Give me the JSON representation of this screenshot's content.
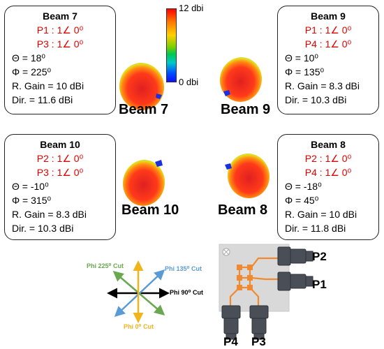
{
  "colorbar": {
    "max_label": "12 dbi",
    "min_label": "0 dbi"
  },
  "beams": [
    {
      "id": "beam7",
      "title": "Beam 7",
      "port_a": "P1 : 1∠ 0⁰",
      "port_b": "P3 : 1∠ 0⁰",
      "theta": "Θ = 18⁰",
      "phi": "Φ = 225⁰",
      "gain": "R. Gain = 10 dBi",
      "dir": "Dir. = 11.6 dBi",
      "label": "Beam 7"
    },
    {
      "id": "beam9",
      "title": "Beam 9",
      "port_a": "P1 : 1∠ 0⁰",
      "port_b": "P4 : 1∠ 0⁰",
      "theta": "Θ = 10⁰",
      "phi": "Φ = 135⁰",
      "gain": "R. Gain = 8.3 dBi",
      "dir": "Dir. = 10.3 dBi",
      "label": "Beam 9"
    },
    {
      "id": "beam10",
      "title": "Beam 10",
      "port_a": "P2 : 1∠ 0⁰",
      "port_b": "P3 : 1∠ 0⁰",
      "theta": "Θ = -10⁰",
      "phi": "Φ = 315⁰",
      "gain": "R. Gain = 8.3 dBi",
      "dir": "Dir. = 10.3 dBi",
      "label": "Beam 10"
    },
    {
      "id": "beam8",
      "title": "Beam 8",
      "port_a": "P2 : 1∠ 0⁰",
      "port_b": "P4 : 1∠ 0⁰",
      "theta": "Θ = -18⁰",
      "phi": "Φ = 45⁰",
      "gain": "R. Gain = 10 dBi",
      "dir": "Dir. = 11.8 dBi",
      "label": "Beam 8"
    }
  ],
  "cuts": {
    "phi225": "Phi 225⁰ Cut",
    "phi135": "Phi 135⁰ Cut",
    "phi90": "Phi 90⁰ Cut",
    "phi0": "Phi 0⁰ Cut"
  },
  "ports": {
    "p1": "P1",
    "p2": "P2",
    "p3": "P3",
    "p4": "P4"
  },
  "colors": {
    "port_red": "#e00000",
    "cut225": "#6aa84f",
    "cut135": "#5b9bd5",
    "cut0": "#f1b51c",
    "feed": "#f08a30"
  }
}
